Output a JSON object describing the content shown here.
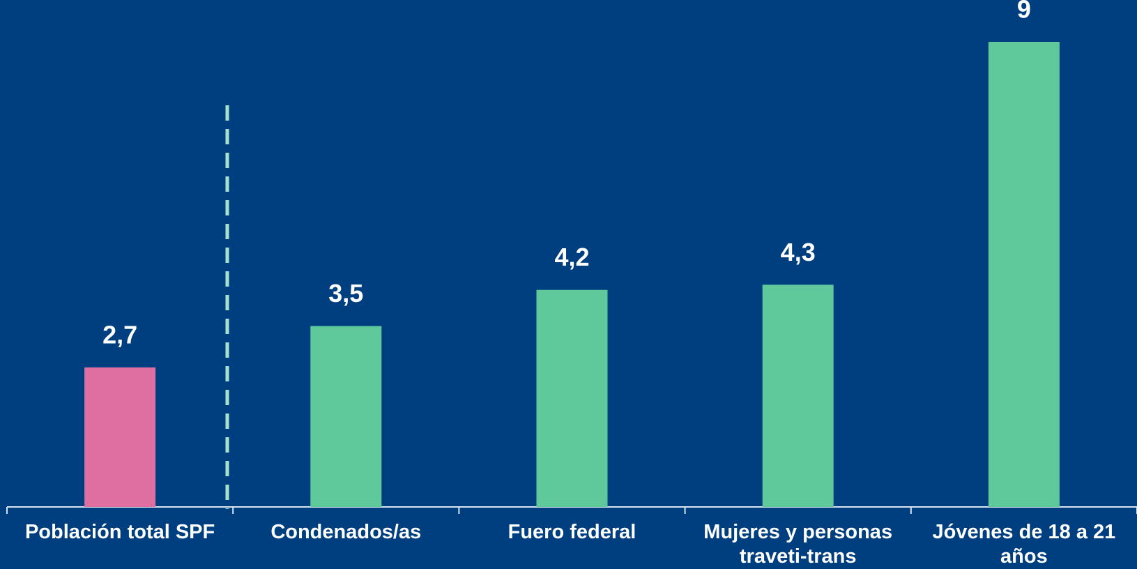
{
  "chart_data": {
    "type": "bar",
    "categories": [
      "Población total SPF",
      "Condenados/as",
      "Fuero federal",
      "Mujeres y personas traveti-trans",
      "Jóvenes de 18 a 21 años"
    ],
    "values": [
      2.7,
      3.5,
      4.2,
      4.3,
      9
    ],
    "value_labels": [
      "2,7",
      "3,5",
      "4,2",
      "4,3",
      "9"
    ],
    "colors": [
      "#df6fa1",
      "#5fc99c",
      "#5fc99c",
      "#5fc99c",
      "#5fc99c"
    ]
  }
}
